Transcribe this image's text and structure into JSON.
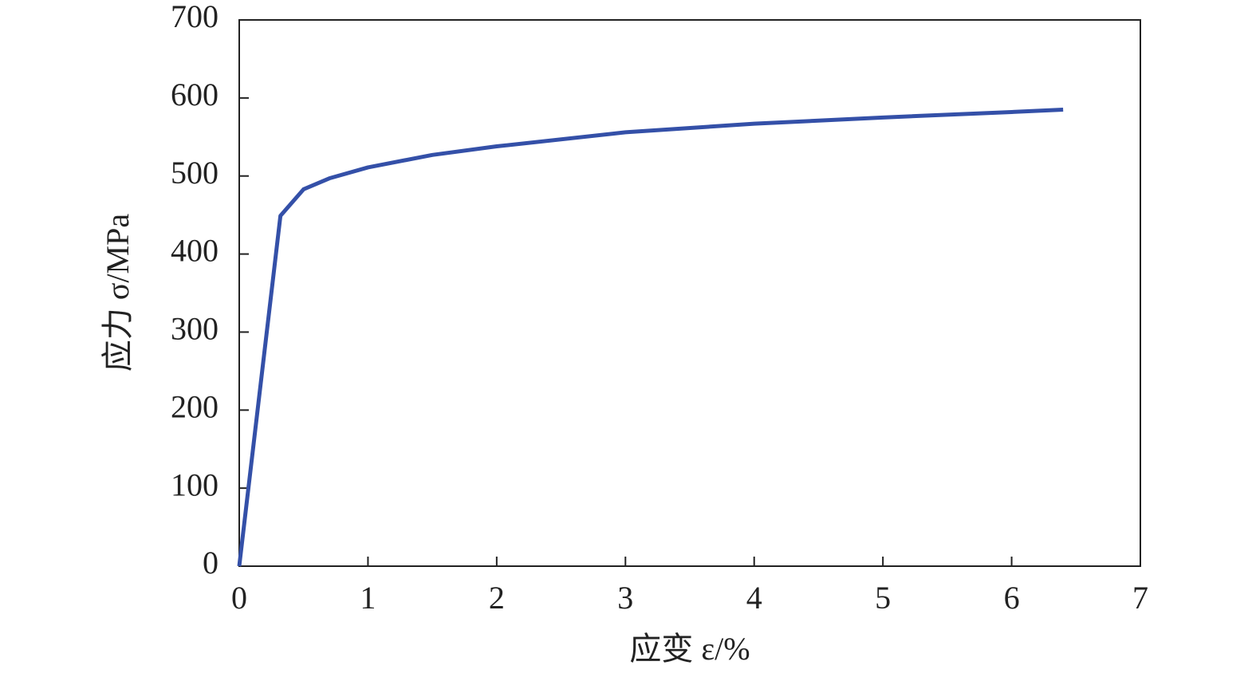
{
  "chart_data": {
    "type": "line",
    "x_label": "应变 ε/%",
    "y_label": "应力 σ/MPa",
    "x": [
      0,
      0.32,
      0.5,
      0.7,
      1,
      1.5,
      2,
      3,
      4,
      5,
      6,
      6.4
    ],
    "series": [
      {
        "color": "#3450a8",
        "values": [
          0,
          449,
          483,
          497,
          511,
          527,
          538,
          556,
          567,
          575,
          582,
          585
        ]
      }
    ],
    "xlim": [
      0,
      7
    ],
    "xticks": [
      0,
      1,
      2,
      3,
      4,
      5,
      6,
      7
    ],
    "ylim": [
      0,
      700
    ],
    "yticks": [
      0,
      100,
      200,
      300,
      400,
      500,
      600,
      700
    ]
  }
}
